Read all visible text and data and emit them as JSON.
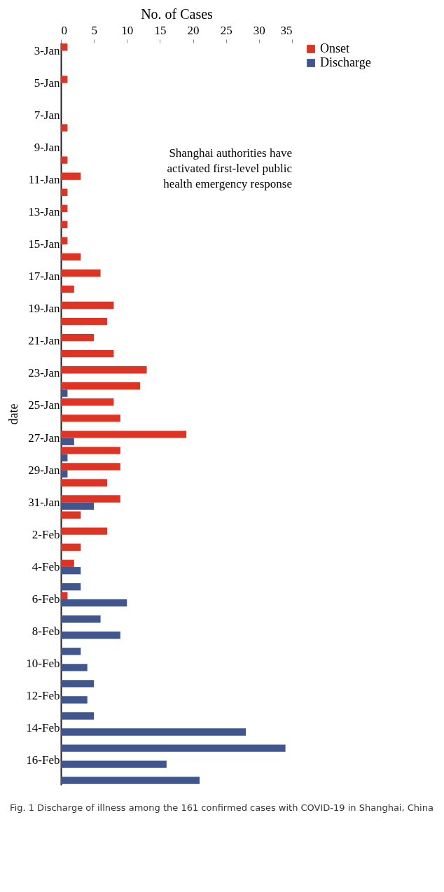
{
  "chart_data": {
    "type": "bar",
    "orientation": "horizontal",
    "xlabel": "No. of Cases",
    "ylabel": "date",
    "categories": [
      "3-Jan",
      null,
      "5-Jan",
      null,
      "7-Jan",
      null,
      "9-Jan",
      null,
      "11-Jan",
      null,
      "13-Jan",
      null,
      "15-Jan",
      null,
      "17-Jan",
      null,
      "19-Jan",
      null,
      "21-Jan",
      null,
      "23-Jan",
      null,
      "25-Jan",
      null,
      "27-Jan",
      null,
      "29-Jan",
      null,
      "31-Jan",
      null,
      "2-Feb",
      null,
      "4-Feb",
      null,
      "6-Feb",
      null,
      "8-Feb",
      null,
      "10-Feb",
      null,
      "12-Feb",
      null,
      "14-Feb",
      null,
      "16-Feb",
      null
    ],
    "series": [
      {
        "name": "Onset",
        "color": "#e03323",
        "values": [
          1,
          null,
          1,
          null,
          null,
          1,
          null,
          1,
          3,
          1,
          1,
          1,
          1,
          3,
          6,
          2,
          8,
          7,
          5,
          8,
          13,
          12,
          8,
          9,
          19,
          9,
          9,
          7,
          9,
          3,
          7,
          3,
          2,
          null,
          1,
          null,
          null,
          null,
          null,
          null,
          null,
          null,
          null,
          null,
          null,
          null
        ]
      },
      {
        "name": "Discharge",
        "color": "#3f568f",
        "values": [
          null,
          null,
          null,
          null,
          null,
          null,
          null,
          null,
          null,
          null,
          null,
          null,
          null,
          null,
          null,
          null,
          null,
          null,
          null,
          null,
          null,
          1,
          null,
          null,
          2,
          1,
          1,
          null,
          5,
          null,
          null,
          null,
          3,
          3,
          10,
          6,
          9,
          3,
          4,
          5,
          4,
          5,
          28,
          34,
          16,
          21
        ]
      }
    ],
    "xlim": [
      0,
      35
    ],
    "xticks": [
      0,
      5,
      10,
      15,
      20,
      25,
      30,
      35
    ],
    "legend": "right",
    "annotations": [
      "Shanghai authorities have activated first-level public health emergency response",
      "Fig. 1 Discharge of illness among the 161 confirmed cases with COVID-19 in Shanghai, China"
    ]
  }
}
